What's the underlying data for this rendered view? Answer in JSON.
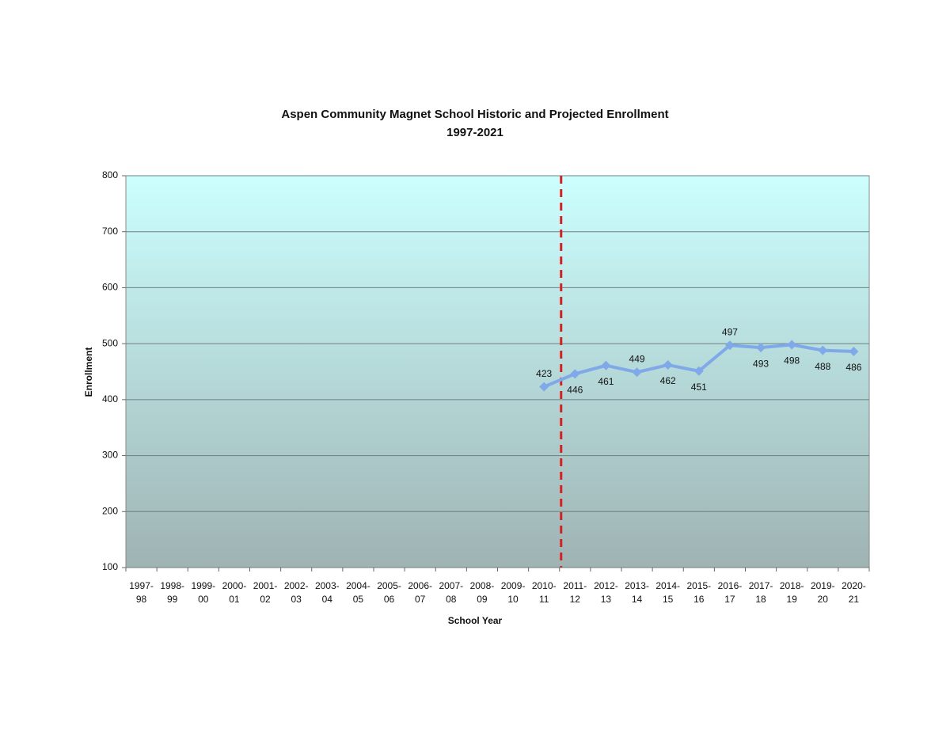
{
  "chart_data": {
    "type": "line",
    "title": "Aspen Community Magnet School Historic and Projected Enrollment",
    "subtitle": "1997-2021",
    "x_label": "School Year",
    "y_label": "Enrollment",
    "categories": [
      "1997-\n98",
      "1998-\n99",
      "1999-\n00",
      "2000-\n01",
      "2001-\n02",
      "2002-\n03",
      "2003-\n04",
      "2004-\n05",
      "2005-\n06",
      "2006-\n07",
      "2007-\n08",
      "2008-\n09",
      "2009-\n10",
      "2010-\n11",
      "2011-\n12",
      "2012-\n13",
      "2013-\n14",
      "2014-\n15",
      "2015-\n16",
      "2016-\n17",
      "2017-\n18",
      "2018-\n19",
      "2019-\n20",
      "2020-\n21"
    ],
    "series": [
      {
        "name": "Enrollment",
        "color": "#7fa9e8",
        "values": [
          null,
          null,
          null,
          null,
          null,
          null,
          null,
          null,
          null,
          null,
          null,
          null,
          null,
          423,
          446,
          461,
          449,
          462,
          451,
          497,
          493,
          498,
          488,
          486
        ]
      }
    ],
    "ylim": [
      100,
      800
    ],
    "yticks": [
      100,
      200,
      300,
      400,
      500,
      600,
      700,
      800
    ],
    "grid": true
  }
}
